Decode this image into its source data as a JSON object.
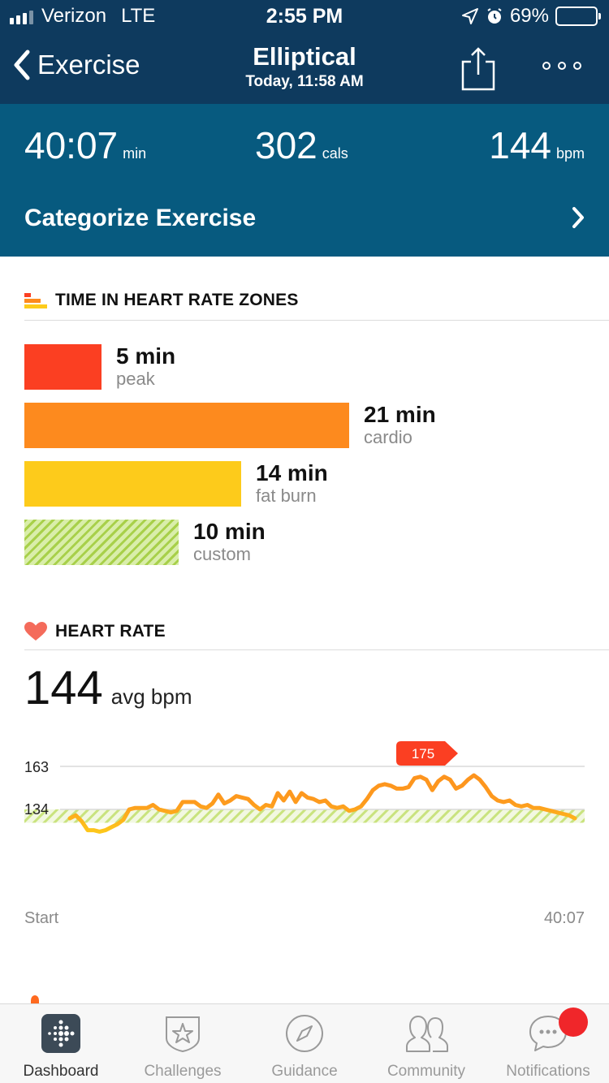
{
  "status_bar": {
    "carrier": "Verizon",
    "network": "LTE",
    "time": "2:55 PM",
    "battery": "69%",
    "battery_level": 0.69
  },
  "nav": {
    "back_label": "Exercise",
    "title": "Elliptical",
    "subtitle": "Today, 11:58 AM"
  },
  "summary": {
    "duration_value": "40:07",
    "duration_unit": "min",
    "calories_value": "302",
    "calories_unit": "cals",
    "hr_value": "144",
    "hr_unit": "bpm",
    "categorize_label": "Categorize Exercise"
  },
  "zones": {
    "title": "TIME IN HEART RATE ZONES",
    "items": [
      {
        "minutes": "5 min",
        "name": "peak",
        "value": 5,
        "color": "#fb3f22"
      },
      {
        "minutes": "21 min",
        "name": "cardio",
        "value": 21,
        "color": "#fd8a1e"
      },
      {
        "minutes": "14 min",
        "name": "fat burn",
        "value": 14,
        "color": "#fdcb1b"
      },
      {
        "minutes": "10 min",
        "name": "custom",
        "value": 10,
        "color": "#a8d04a"
      }
    ]
  },
  "heart_rate": {
    "title": "HEART RATE",
    "avg_value": "144",
    "avg_unit": "avg bpm",
    "peak_label": "175"
  },
  "chart_data": {
    "type": "line",
    "y_ticks": [
      "163",
      "134"
    ],
    "x_start_label": "Start",
    "x_end_label": "40:07",
    "peak_marker": 175,
    "shaded_band": [
      125,
      134
    ],
    "series": [
      {
        "values": [
          128,
          130,
          126,
          120,
          120,
          119,
          120,
          122,
          124,
          127,
          134,
          135,
          135,
          135,
          137,
          134,
          133,
          132,
          133,
          139,
          139,
          139,
          136,
          135,
          138,
          144,
          138,
          140,
          143,
          142,
          141,
          137,
          134,
          137,
          136,
          145,
          140,
          146,
          139,
          145,
          142,
          141,
          139,
          140,
          136,
          135,
          136,
          133,
          134,
          136,
          141,
          147,
          150,
          151,
          150,
          148,
          148,
          149,
          155,
          156,
          154,
          147,
          153,
          156,
          154,
          148,
          150,
          154,
          157,
          154,
          149,
          143,
          140,
          139,
          140,
          137,
          136,
          137,
          135,
          135,
          134,
          133,
          132,
          131,
          130,
          128
        ]
      }
    ]
  },
  "tabs": [
    {
      "label": "Dashboard",
      "icon": "dashboard-icon"
    },
    {
      "label": "Challenges",
      "icon": "star-badge-icon"
    },
    {
      "label": "Guidance",
      "icon": "compass-icon"
    },
    {
      "label": "Community",
      "icon": "people-icon"
    },
    {
      "label": "Notifications",
      "icon": "chat-bubble-icon"
    }
  ]
}
